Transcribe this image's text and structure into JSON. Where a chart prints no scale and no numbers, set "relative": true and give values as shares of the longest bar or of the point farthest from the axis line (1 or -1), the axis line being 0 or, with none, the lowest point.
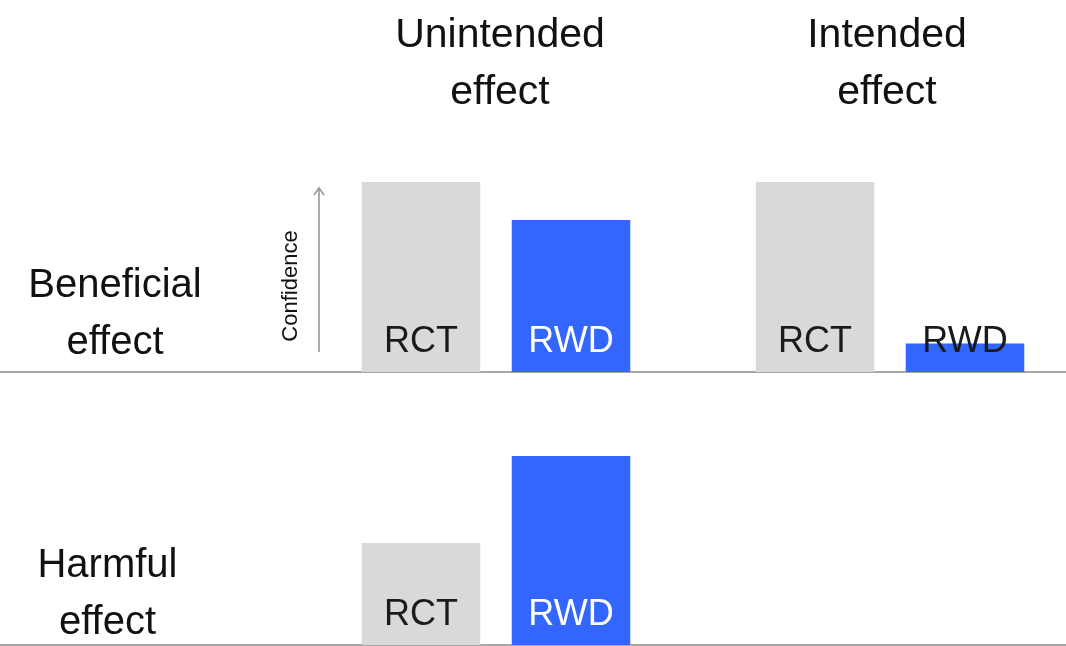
{
  "chart_data": [
    {
      "type": "bar",
      "title": "Unintended effect",
      "ylabel": "Confidence",
      "annotations": [
        "Beneficial effect"
      ],
      "categories": [
        "RCT",
        "RWD"
      ],
      "values": [
        1,
        0.8
      ],
      "colors": [
        "#d9d9d9",
        "#3366ff"
      ],
      "relative": true
    },
    {
      "type": "bar",
      "title": "Intended effect",
      "categories": [
        "RCT",
        "RWD"
      ],
      "values": [
        1,
        0.15
      ],
      "colors": [
        "#d9d9d9",
        "#3366ff"
      ],
      "relative": true
    },
    {
      "type": "bar",
      "annotations": [
        "Harmful effect"
      ],
      "categories": [
        "RCT",
        "RWD"
      ],
      "values": [
        0.54,
        1
      ],
      "colors": [
        "#d9d9d9",
        "#3366ff"
      ],
      "relative": true
    }
  ]
}
